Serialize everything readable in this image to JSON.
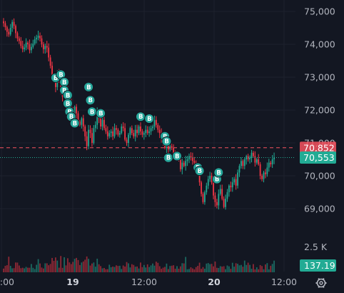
{
  "chart_data": {
    "type": "candlestick",
    "price_axis": {
      "ticks": [
        69000,
        70000,
        71000,
        72000,
        73000,
        74000,
        75000
      ],
      "tick_labels": [
        "69,000",
        "70,000",
        "71,000",
        "72,000",
        "73,000",
        "74,000",
        "75,000"
      ],
      "range": [
        68300,
        75350
      ]
    },
    "volume_axis": {
      "ticks": [
        2500
      ],
      "tick_labels": [
        "2.5 K"
      ],
      "current_value_label": "137.19"
    },
    "time_axis": {
      "ticks": [
        {
          "label": "12:00",
          "emphasis": false
        },
        {
          "label": "19",
          "emphasis": true
        },
        {
          "label": "12:00",
          "emphasis": false
        },
        {
          "label": "20",
          "emphasis": true
        },
        {
          "label": "12:00",
          "emphasis": false
        }
      ]
    },
    "price_lines": [
      {
        "value": 70852,
        "label": "70,852",
        "style": "dashed",
        "color": "#f7525f"
      },
      {
        "value": 70553,
        "label": "70,553",
        "style": "dotted",
        "color": "#22ab94"
      }
    ],
    "closes": [
      74640,
      74520,
      74380,
      74300,
      74500,
      74680,
      74560,
      74340,
      74180,
      74100,
      73950,
      73850,
      73900,
      74050,
      74000,
      73820,
      73920,
      74020,
      74150,
      74200,
      74260,
      74180,
      74000,
      73850,
      73950,
      73900,
      73600,
      73350,
      73050,
      72950,
      72700,
      73100,
      72900,
      72600,
      72400,
      72850,
      72650,
      72500,
      72300,
      72000,
      71750,
      72100,
      71900,
      71650,
      71550,
      71750,
      71500,
      71200,
      70900,
      71400,
      71300,
      71000,
      71450,
      71550,
      71950,
      71750,
      71500,
      71700,
      71450,
      71350,
      71200,
      71300,
      71350,
      71200,
      71450,
      71400,
      71250,
      71300,
      71500,
      71450,
      71100,
      71000,
      71250,
      71450,
      71300,
      71200,
      71400,
      71300,
      71500,
      71350,
      71250,
      71300,
      71400,
      71300,
      71350,
      71450,
      71500,
      71700,
      71550,
      71400,
      71300,
      71100,
      71000,
      70850,
      70950,
      70800,
      70900,
      70850,
      70650,
      70600,
      70700,
      70550,
      70200,
      70400,
      70300,
      70450,
      70500,
      70600,
      70550,
      70450,
      70400,
      70350,
      70200,
      69800,
      69450,
      69200,
      69500,
      69700,
      69900,
      70000,
      69800,
      69400,
      69200,
      69100,
      69450,
      69600,
      69300,
      69050,
      69300,
      69500,
      69700,
      69650,
      69800,
      69900,
      69700,
      70100,
      70300,
      70450,
      70300,
      70500,
      70600,
      70500,
      70550,
      70700,
      70600,
      70400,
      70500,
      70350,
      70000,
      69900,
      70100,
      70050,
      70250,
      70400,
      70350,
      70500,
      70550
    ],
    "buy_markers": [
      {
        "index": 30,
        "price": 72980,
        "label": "B"
      },
      {
        "index": 33,
        "price": 73080,
        "label": "B"
      },
      {
        "index": 35,
        "price": 72850,
        "label": "B"
      },
      {
        "index": 35,
        "price": 72600,
        "label": "B"
      },
      {
        "index": 37,
        "price": 72450,
        "label": "B"
      },
      {
        "index": 37,
        "price": 72200,
        "label": "B"
      },
      {
        "index": 38,
        "price": 71950,
        "label": "B"
      },
      {
        "index": 39,
        "price": 71800,
        "label": "B"
      },
      {
        "index": 41,
        "price": 71600,
        "label": "B"
      },
      {
        "index": 49,
        "price": 72700,
        "label": "B"
      },
      {
        "index": 50,
        "price": 72300,
        "label": "B"
      },
      {
        "index": 51,
        "price": 71950,
        "label": "B"
      },
      {
        "index": 56,
        "price": 71900,
        "label": "B"
      },
      {
        "index": 79,
        "price": 71800,
        "label": "B"
      },
      {
        "index": 84,
        "price": 71740,
        "label": "B"
      },
      {
        "index": 93,
        "price": 71200,
        "label": "B"
      },
      {
        "index": 94,
        "price": 71050,
        "label": "B"
      },
      {
        "index": 95,
        "price": 70550,
        "label": "B"
      },
      {
        "index": 100,
        "price": 70600,
        "label": "B"
      },
      {
        "index": 112,
        "price": 70250,
        "label": "B"
      },
      {
        "index": 113,
        "price": 70150,
        "label": "B"
      },
      {
        "index": 123,
        "price": 69900,
        "label": "B"
      },
      {
        "index": 124,
        "price": 70100,
        "label": "B"
      }
    ],
    "colors": {
      "background": "#131722",
      "up": "#22ab94",
      "down": "#f23645",
      "marker": "#26a69a",
      "grid": "#1e222d",
      "text": "#b2b5be"
    }
  }
}
